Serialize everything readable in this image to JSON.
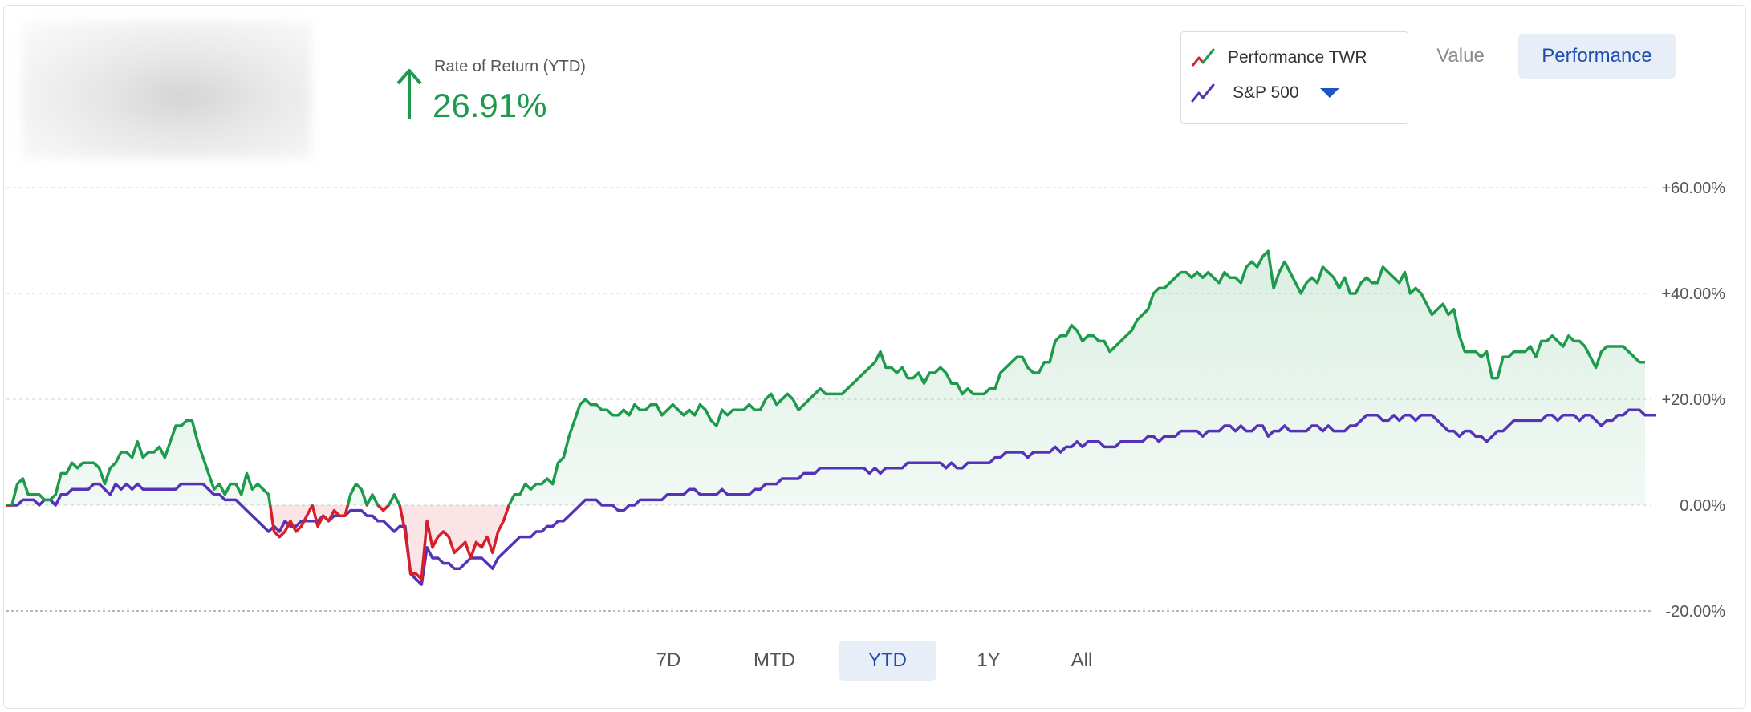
{
  "summary": {
    "label": "Rate of Return (YTD)",
    "value": "26.91%",
    "direction": "up",
    "color": "#1e9a4c"
  },
  "legend": {
    "items": [
      {
        "label": "Performance TWR",
        "icon": "line-chart-icon-red-green"
      },
      {
        "label": "S&P 500",
        "icon": "line-chart-icon-purple",
        "dropdown": true
      }
    ]
  },
  "view_toggle": {
    "value_label": "Value",
    "performance_label": "Performance",
    "selected": "Performance"
  },
  "time_ranges": {
    "items": [
      "7D",
      "MTD",
      "YTD",
      "1Y",
      "All"
    ],
    "selected": "YTD"
  },
  "colors": {
    "positive": "#1e9a4c",
    "negative": "#d61f2a",
    "benchmark": "#5533b8",
    "accent": "#1f4fae"
  },
  "chart_data": {
    "type": "line",
    "title": "",
    "xlabel": "",
    "ylabel": "",
    "ylim": [
      -20,
      60
    ],
    "y_ticks": [
      "+60.00%",
      "+40.00%",
      "+20.00%",
      "0.00%",
      "-20.00%"
    ],
    "y_tick_values": [
      60,
      40,
      20,
      0,
      -20
    ],
    "grid": true,
    "legend": "top-right",
    "series": [
      {
        "name": "Performance TWR",
        "values": [
          0,
          0,
          4,
          5,
          2,
          2,
          2,
          1,
          1,
          2,
          6,
          6,
          8,
          7,
          8,
          8,
          8,
          7,
          4,
          7,
          8,
          10,
          10,
          9,
          12,
          9,
          10,
          10,
          11,
          9,
          12,
          15,
          15,
          16,
          16,
          12,
          9,
          6,
          3,
          4,
          2,
          4,
          4,
          2,
          6,
          3,
          4,
          3,
          2,
          -5,
          -6,
          -5,
          -3,
          -5,
          -4,
          -2,
          0,
          -4,
          -2,
          -3,
          -1,
          -2,
          -2,
          2,
          4,
          3,
          0,
          2,
          0,
          -1,
          0,
          2,
          0,
          -5,
          -13,
          -13,
          -14,
          -3,
          -8,
          -6,
          -5,
          -6,
          -9,
          -8,
          -7,
          -10,
          -7,
          -8,
          -6,
          -9,
          -5,
          -3,
          0,
          2,
          2,
          4,
          3,
          4,
          4,
          5,
          4,
          8,
          9,
          13,
          16,
          19,
          20,
          19,
          19,
          18,
          18,
          17,
          17,
          18,
          17,
          19,
          18,
          18,
          19,
          19,
          17,
          18,
          19,
          18,
          17,
          18,
          17,
          19,
          18,
          16,
          15,
          18,
          17,
          18,
          18,
          18,
          19,
          18,
          18,
          20,
          21,
          19,
          20,
          21,
          20,
          18,
          19,
          20,
          21,
          22,
          21,
          21,
          21,
          21,
          22,
          23,
          24,
          25,
          26,
          27,
          29,
          26,
          26,
          25,
          26,
          24,
          24,
          25,
          23,
          25,
          25,
          26,
          25,
          23,
          23,
          21,
          22,
          21,
          21,
          21,
          22,
          22,
          25,
          26,
          27,
          28,
          28,
          26,
          25,
          25,
          27,
          27,
          31,
          32,
          32,
          34,
          33,
          31,
          32,
          32,
          31,
          31,
          29,
          30,
          31,
          32,
          33,
          35,
          36,
          37,
          40,
          41,
          41,
          42,
          43,
          44,
          44,
          43,
          44,
          43,
          44,
          43,
          42,
          44,
          43,
          43,
          42,
          45,
          46,
          45,
          47,
          48,
          41,
          44,
          46,
          44,
          42,
          40,
          42,
          43,
          42,
          45,
          44,
          43,
          41,
          43,
          40,
          40,
          42,
          43,
          42,
          42,
          45,
          44,
          43,
          42,
          44,
          40,
          41,
          40,
          38,
          36,
          37,
          38,
          36,
          37,
          32,
          29,
          29,
          29,
          28,
          29,
          24,
          24,
          28,
          28,
          29,
          29,
          29,
          30,
          28,
          31,
          31,
          32,
          31,
          30,
          32,
          31,
          31,
          30,
          28,
          26,
          29,
          30,
          30,
          30,
          30,
          29,
          28,
          27,
          27
        ]
      },
      {
        "name": "S&P 500",
        "values": [
          0,
          0,
          0,
          1,
          1,
          1,
          0,
          1,
          1,
          0,
          2,
          2,
          3,
          3,
          3,
          3,
          4,
          4,
          3,
          2,
          4,
          3,
          4,
          3,
          4,
          3,
          3,
          3,
          3,
          3,
          3,
          3,
          4,
          4,
          4,
          4,
          4,
          3,
          2,
          2,
          1,
          1,
          1,
          0,
          -1,
          -2,
          -3,
          -4,
          -5,
          -4,
          -5,
          -3,
          -4,
          -4,
          -3,
          -3,
          -3,
          -3,
          -2,
          -3,
          -2,
          -2,
          -2,
          -1,
          -1,
          -1,
          -2,
          -2,
          -3,
          -3,
          -4,
          -5,
          -4,
          -4,
          -13,
          -14,
          -15,
          -8,
          -10,
          -10,
          -11,
          -11,
          -12,
          -12,
          -11,
          -10,
          -10,
          -10,
          -11,
          -12,
          -10,
          -9,
          -8,
          -7,
          -6,
          -6,
          -6,
          -5,
          -5,
          -4,
          -4,
          -3,
          -3,
          -2,
          -1,
          0,
          1,
          1,
          1,
          0,
          0,
          0,
          -1,
          -1,
          0,
          0,
          1,
          1,
          1,
          1,
          1,
          2,
          2,
          2,
          2,
          3,
          3,
          2,
          2,
          2,
          2,
          3,
          2,
          2,
          2,
          2,
          2,
          3,
          3,
          4,
          4,
          4,
          5,
          5,
          5,
          5,
          6,
          6,
          6,
          7,
          7,
          7,
          7,
          7,
          7,
          7,
          7,
          7,
          6,
          7,
          6,
          7,
          7,
          7,
          7,
          8,
          8,
          8,
          8,
          8,
          8,
          8,
          7,
          8,
          7,
          7,
          8,
          8,
          8,
          8,
          8,
          9,
          9,
          10,
          10,
          10,
          10,
          9,
          10,
          10,
          10,
          10,
          11,
          10,
          11,
          11,
          12,
          11,
          12,
          12,
          12,
          11,
          11,
          11,
          12,
          12,
          12,
          12,
          12,
          13,
          13,
          12,
          13,
          13,
          13,
          14,
          14,
          14,
          14,
          13,
          14,
          14,
          14,
          15,
          15,
          14,
          15,
          14,
          14,
          15,
          15,
          13,
          14,
          14,
          15,
          14,
          14,
          14,
          14,
          15,
          15,
          14,
          15,
          14,
          14,
          14,
          15,
          15,
          16,
          17,
          17,
          17,
          16,
          16,
          17,
          16,
          17,
          17,
          16,
          17,
          17,
          17,
          16,
          15,
          14,
          14,
          13,
          14,
          14,
          13,
          13,
          12,
          13,
          14,
          14,
          15,
          16,
          16,
          16,
          16,
          16,
          16,
          17,
          17,
          16,
          17,
          17,
          17,
          16,
          17,
          17,
          16,
          15,
          16,
          16,
          17,
          17,
          18,
          18,
          18,
          17,
          17,
          17
        ]
      }
    ]
  }
}
